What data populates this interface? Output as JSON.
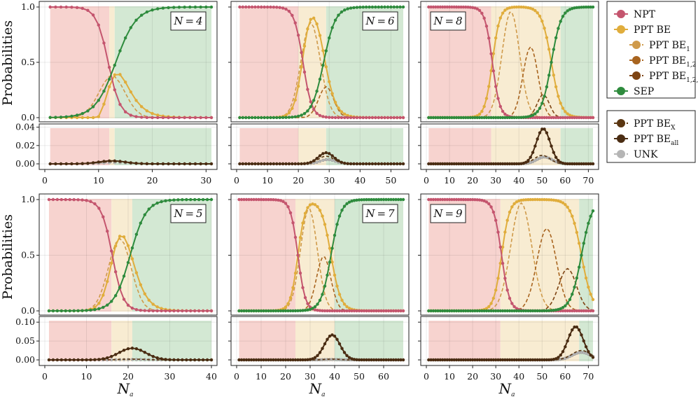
{
  "figure": {
    "ylabel": "Probabilities",
    "xlabel_main": "N",
    "xlabel_sub": "a",
    "panel_label_prefix": "N",
    "colors": {
      "NPT": "#c4556e",
      "PPT_BE": "#e0ad3c",
      "BE1": "#cf9a4a",
      "BE12": "#a8641f",
      "BE123": "#7e4413",
      "BEx": "#5a3611",
      "BEall": "#4a2c12",
      "UNK": "#b5b5b5",
      "SEP": "#2e8b3d",
      "bg_red": "#f7d3cf",
      "bg_yellow": "#f8ecd2",
      "bg_green": "#d3e8d3"
    },
    "legend": [
      {
        "key": "NPT",
        "label": "NPT",
        "sub": "",
        "style": "solid"
      },
      {
        "key": "PPT_BE",
        "label": "PPT BE",
        "sub": "",
        "style": "solid"
      },
      {
        "key": "BE1",
        "label": "PPT BE",
        "sub": "1",
        "style": "dash",
        "indent": true
      },
      {
        "key": "BE12",
        "label": "PPT BE",
        "sub": "1,2",
        "style": "dash",
        "indent": true
      },
      {
        "key": "BE123",
        "label": "PPT BE",
        "sub": "1,2,3",
        "style": "dash",
        "indent": true
      },
      {
        "key": "SEP",
        "label": "SEP",
        "sub": "",
        "style": "solid"
      }
    ],
    "legend2": [
      {
        "key": "BEx",
        "label": "PPT BE",
        "sub": "X",
        "style": "dash"
      },
      {
        "key": "BEall",
        "label": "PPT BE",
        "sub": "all",
        "style": "solid"
      },
      {
        "key": "UNK",
        "label": "UNK",
        "sub": "",
        "style": "dash"
      }
    ]
  },
  "chart_data": [
    {
      "type": "line",
      "N": 4,
      "row": 0,
      "col": 0,
      "xmax": 31,
      "xticks": [
        0,
        10,
        20,
        30
      ],
      "ticks_top": [
        "0.0",
        "0.5",
        "1.0"
      ],
      "ticks_bottom": [
        "0.00",
        "0.02",
        "0.04"
      ],
      "bottom_max": 0.045,
      "regions": [
        {
          "from": 1,
          "to": 12,
          "color": "red"
        },
        {
          "from": 12,
          "to": 13,
          "color": "yellow"
        },
        {
          "from": 13,
          "to": 31,
          "color": "green"
        }
      ],
      "curves": {
        "NPT": {
          "center": 11.8,
          "width": 1.1
        },
        "SEP": {
          "center": 13.2,
          "width": 1.9
        },
        "BE": {
          "peak": 0.39,
          "center": 12.5,
          "width": 2.5
        },
        "BE1": {
          "peak": 0.38,
          "center": 12.5,
          "width": 2.4
        },
        "BEall": {
          "peak": 0.0035,
          "center": 12.5,
          "width": 2.5
        },
        "BEx": {
          "peak": 0.0025,
          "center": 12.5,
          "width": 2.5
        },
        "UNK": {
          "peak": 0.0015,
          "center": 13,
          "width": 2.5
        }
      }
    },
    {
      "type": "line",
      "N": 6,
      "row": 0,
      "col": 1,
      "xmax": 54,
      "xticks": [
        0,
        10,
        20,
        30,
        40,
        50
      ],
      "ticks_top": [
        "0.0",
        "0.5",
        "1.0"
      ],
      "ticks_bottom": [
        "0.00",
        "0.02",
        "0.04"
      ],
      "bottom_max": 0.045,
      "regions": [
        {
          "from": 1,
          "to": 20,
          "color": "red"
        },
        {
          "from": 20,
          "to": 29,
          "color": "yellow"
        },
        {
          "from": 29,
          "to": 54,
          "color": "green"
        }
      ],
      "curves": {
        "NPT": {
          "center": 21.5,
          "width": 1.4
        },
        "SEP": {
          "center": 28.2,
          "width": 1.9
        },
        "BE": {
          "peak": 0.9,
          "center": 24.5,
          "width": 3.3
        },
        "BE1": {
          "peak": 0.86,
          "center": 24,
          "width": 3.1
        },
        "BE12": {
          "peak": 0.28,
          "center": 29,
          "width": 2.4
        },
        "BEall": {
          "peak": 0.013,
          "center": 29,
          "width": 2.5
        },
        "BEx": {
          "peak": 0.009,
          "center": 29,
          "width": 2.5
        },
        "UNK": {
          "peak": 0.005,
          "center": 29.5,
          "width": 2.5
        }
      }
    },
    {
      "type": "line",
      "N": 8,
      "row": 0,
      "col": 2,
      "xmax": 72,
      "xticks": [
        0,
        10,
        20,
        30,
        40,
        50,
        60,
        70
      ],
      "ticks_top": [
        "0.0",
        "0.5",
        "1.0"
      ],
      "ticks_bottom": [
        "0.00",
        "0.02",
        "0.04"
      ],
      "bottom_max": 0.045,
      "regions": [
        {
          "from": 1,
          "to": 28,
          "color": "red"
        },
        {
          "from": 28,
          "to": 58,
          "color": "yellow"
        },
        {
          "from": 58,
          "to": 72,
          "color": "green"
        }
      ],
      "curves": {
        "NPT": {
          "center": 28.5,
          "width": 1.6
        },
        "SEP": {
          "center": 54,
          "width": 2.1
        },
        "BE": {
          "peak": 1.0,
          "center": 41,
          "width": 8,
          "plateau": [
            32,
            50
          ]
        },
        "BE1": {
          "peak": 0.96,
          "center": 36.5,
          "width": 3.8
        },
        "BE12": {
          "peak": 0.64,
          "center": 45,
          "width": 3.2
        },
        "BE123": {
          "peak": 0.21,
          "center": 50.5,
          "width": 2.6
        },
        "BEall": {
          "peak": 0.041,
          "center": 50.5,
          "width": 3
        },
        "BEx": {
          "peak": 0.01,
          "center": 50,
          "width": 3.3
        },
        "UNK": {
          "peak": 0.008,
          "center": 51,
          "width": 3.3
        }
      }
    },
    {
      "type": "line",
      "N": 5,
      "row": 1,
      "col": 0,
      "xmax": 40,
      "xticks": [
        0,
        10,
        20,
        30,
        40
      ],
      "ticks_top": [
        "0.0",
        "0.5",
        "1.0"
      ],
      "ticks_bottom": [
        "0.00",
        "0.05",
        "0.10"
      ],
      "bottom_max": 0.105,
      "regions": [
        {
          "from": 1,
          "to": 16,
          "color": "red"
        },
        {
          "from": 16,
          "to": 21,
          "color": "yellow"
        },
        {
          "from": 21,
          "to": 40,
          "color": "green"
        }
      ],
      "curves": {
        "NPT": {
          "center": 16.2,
          "width": 1.3
        },
        "SEP": {
          "center": 20.5,
          "width": 1.9
        },
        "BE": {
          "peak": 0.67,
          "center": 18,
          "width": 2.8
        },
        "BE1": {
          "peak": 0.65,
          "center": 18,
          "width": 2.7
        },
        "BEall": {
          "peak": 0.031,
          "center": 21,
          "width": 3.2
        },
        "BEx": {
          "peak": 0.002,
          "center": 21,
          "width": 3
        },
        "UNK": {
          "peak": 0.001,
          "center": 21,
          "width": 3
        }
      }
    },
    {
      "type": "line",
      "N": 7,
      "row": 1,
      "col": 1,
      "xmax": 68,
      "xticks": [
        0,
        10,
        20,
        30,
        40,
        50,
        60
      ],
      "ticks_top": [
        "0.0",
        "0.5",
        "1.0"
      ],
      "ticks_bottom": [
        "0.00",
        "0.05",
        "0.10"
      ],
      "bottom_max": 0.105,
      "regions": [
        {
          "from": 1,
          "to": 24,
          "color": "red"
        },
        {
          "from": 24,
          "to": 40,
          "color": "yellow"
        },
        {
          "from": 40,
          "to": 68,
          "color": "green"
        }
      ],
      "curves": {
        "NPT": {
          "center": 25,
          "width": 1.5
        },
        "SEP": {
          "center": 38.5,
          "width": 2.0
        },
        "BE": {
          "peak": 0.96,
          "center": 31,
          "width": 4.8
        },
        "BE1": {
          "peak": 0.92,
          "center": 29.5,
          "width": 3.4
        },
        "BE12": {
          "peak": 0.49,
          "center": 35.5,
          "width": 2.9
        },
        "BEall": {
          "peak": 0.066,
          "center": 39,
          "width": 3.2
        },
        "BEx": {
          "peak": 0.002,
          "center": 39,
          "width": 3
        },
        "UNK": {
          "peak": 0.001,
          "center": 39,
          "width": 3
        }
      }
    },
    {
      "type": "line",
      "N": 9,
      "row": 1,
      "col": 2,
      "xmax": 72,
      "xticks": [
        0,
        10,
        20,
        30,
        40,
        50,
        60,
        70
      ],
      "ticks_top": [
        "0.0",
        "0.5",
        "1.0"
      ],
      "ticks_bottom": [
        "0.00",
        "0.05",
        "0.10"
      ],
      "bottom_max": 0.105,
      "regions": [
        {
          "from": 1,
          "to": 32,
          "color": "red"
        },
        {
          "from": 32,
          "to": 66,
          "color": "yellow"
        },
        {
          "from": 66,
          "to": 72,
          "color": "green"
        }
      ],
      "curves": {
        "NPT": {
          "center": 32.5,
          "width": 1.7
        },
        "SEP": {
          "center": 67,
          "width": 2.3
        },
        "BE": {
          "peak": 1.0,
          "center": 50,
          "width": 10,
          "plateau": [
            37,
            62
          ]
        },
        "BE1": {
          "peak": 0.97,
          "center": 41,
          "width": 4.5
        },
        "BE12": {
          "peak": 0.74,
          "center": 52,
          "width": 4.2
        },
        "BE123": {
          "peak": 0.38,
          "center": 61,
          "width": 3.8
        },
        "BEall": {
          "peak": 0.088,
          "center": 64.5,
          "width": 3.3
        },
        "BEx": {
          "peak": 0.025,
          "center": 67,
          "width": 4
        },
        "UNK": {
          "peak": 0.02,
          "center": 67,
          "width": 4
        }
      }
    }
  ]
}
